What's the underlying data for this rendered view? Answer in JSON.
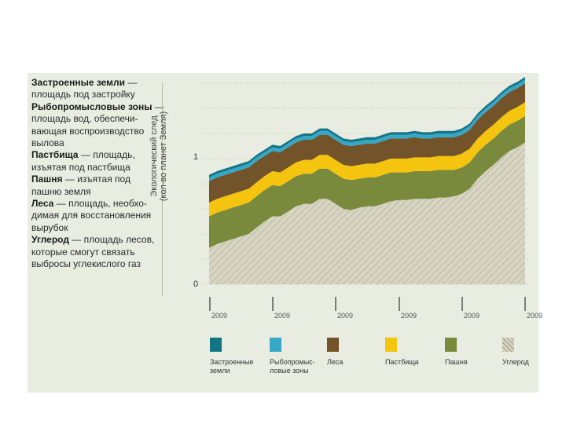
{
  "legend_text": [
    {
      "bold": "Застроенные земли",
      "rest": " —"
    },
    {
      "bold": "",
      "rest": "площадь под застройку"
    },
    {
      "bold": "Рыбопромысловые зоны",
      "rest": " —"
    },
    {
      "bold": "",
      "rest": "площадь вод, обеспечи-"
    },
    {
      "bold": "",
      "rest": "вающая воспроизводство"
    },
    {
      "bold": "",
      "rest": "вылова"
    },
    {
      "bold": "Пастбища",
      "rest": " — площадь,"
    },
    {
      "bold": "",
      "rest": "изъятая под пастбища"
    },
    {
      "bold": "Пашня",
      "rest": " — изъятая под"
    },
    {
      "bold": "",
      "rest": "пашню земля"
    },
    {
      "bold": "Леса",
      "rest": " — площадь, необхо-"
    },
    {
      "bold": "",
      "rest": "димая для восстановления"
    },
    {
      "bold": "",
      "rest": "вырубок"
    },
    {
      "bold": "Углерод",
      "rest": " — площадь лесов,"
    },
    {
      "bold": "",
      "rest": "которые смогут связать"
    },
    {
      "bold": "",
      "rest": "выбросы углекислого газ"
    }
  ],
  "chart_data": {
    "type": "area",
    "stacked": true,
    "title": "",
    "ylabel": "Экологический след (кол-во планет Земля)",
    "ylabel_line1": "Экологический след",
    "ylabel_line2": "(кол-во планет Земля)",
    "ylim": [
      0,
      1.6
    ],
    "yticks": [
      "0",
      "1"
    ],
    "grid": true,
    "x_tick_labels": [
      "2009",
      "2009",
      "2009",
      "2009",
      "2009",
      "2009"
    ],
    "x": [
      0,
      3,
      6,
      9,
      12,
      15,
      18,
      21,
      24,
      27,
      30,
      33,
      36,
      39,
      42,
      45,
      48,
      51,
      54,
      57,
      60,
      63,
      66,
      69,
      72,
      75,
      78,
      81,
      84,
      87,
      90,
      93,
      96,
      99,
      102,
      105,
      108,
      111,
      114,
      117,
      120
    ],
    "series": [
      {
        "name": "Углерод",
        "key": "carbon",
        "color": "#c9c6b2",
        "values": [
          0.29,
          0.32,
          0.34,
          0.36,
          0.38,
          0.4,
          0.45,
          0.5,
          0.54,
          0.54,
          0.58,
          0.62,
          0.64,
          0.64,
          0.68,
          0.68,
          0.64,
          0.6,
          0.59,
          0.61,
          0.62,
          0.62,
          0.64,
          0.66,
          0.67,
          0.67,
          0.68,
          0.68,
          0.68,
          0.69,
          0.69,
          0.7,
          0.72,
          0.76,
          0.84,
          0.9,
          0.95,
          1.01,
          1.06,
          1.09,
          1.13
        ]
      },
      {
        "name": "Пашня",
        "key": "cropland",
        "color": "#7a8a3c",
        "values": [
          0.25,
          0.25,
          0.25,
          0.25,
          0.25,
          0.25,
          0.25,
          0.25,
          0.25,
          0.24,
          0.24,
          0.24,
          0.24,
          0.24,
          0.24,
          0.24,
          0.24,
          0.24,
          0.24,
          0.23,
          0.23,
          0.23,
          0.23,
          0.23,
          0.22,
          0.22,
          0.22,
          0.22,
          0.22,
          0.22,
          0.22,
          0.21,
          0.21,
          0.21,
          0.21,
          0.21,
          0.21,
          0.21,
          0.21,
          0.21,
          0.21
        ]
      },
      {
        "name": "Пастбища",
        "key": "grazing",
        "color": "#f4c40f",
        "values": [
          0.11,
          0.11,
          0.11,
          0.11,
          0.11,
          0.11,
          0.11,
          0.11,
          0.11,
          0.11,
          0.11,
          0.11,
          0.11,
          0.11,
          0.11,
          0.11,
          0.11,
          0.11,
          0.11,
          0.11,
          0.11,
          0.11,
          0.11,
          0.11,
          0.11,
          0.11,
          0.11,
          0.11,
          0.11,
          0.11,
          0.11,
          0.11,
          0.11,
          0.11,
          0.11,
          0.11,
          0.11,
          0.11,
          0.11,
          0.11,
          0.11
        ]
      },
      {
        "name": "Леса",
        "key": "forest",
        "color": "#73532a",
        "values": [
          0.17,
          0.17,
          0.17,
          0.17,
          0.17,
          0.17,
          0.17,
          0.16,
          0.16,
          0.16,
          0.16,
          0.16,
          0.16,
          0.16,
          0.16,
          0.16,
          0.16,
          0.16,
          0.16,
          0.16,
          0.16,
          0.16,
          0.16,
          0.16,
          0.16,
          0.16,
          0.16,
          0.15,
          0.15,
          0.15,
          0.15,
          0.15,
          0.15,
          0.15,
          0.15,
          0.15,
          0.15,
          0.15,
          0.15,
          0.15,
          0.15
        ]
      },
      {
        "name": "Рыбопромысловые зоны",
        "key": "fishing",
        "color": "#35a8c8",
        "values": [
          0.03,
          0.03,
          0.03,
          0.03,
          0.03,
          0.03,
          0.03,
          0.03,
          0.03,
          0.03,
          0.03,
          0.03,
          0.03,
          0.03,
          0.03,
          0.03,
          0.03,
          0.03,
          0.03,
          0.03,
          0.03,
          0.03,
          0.03,
          0.03,
          0.03,
          0.03,
          0.03,
          0.03,
          0.03,
          0.03,
          0.03,
          0.03,
          0.03,
          0.03,
          0.03,
          0.03,
          0.03,
          0.03,
          0.03,
          0.03,
          0.03
        ]
      },
      {
        "name": "Застроенные земли",
        "key": "builtup",
        "color": "#137486",
        "values": [
          0.02,
          0.02,
          0.02,
          0.02,
          0.02,
          0.02,
          0.02,
          0.02,
          0.02,
          0.02,
          0.02,
          0.02,
          0.02,
          0.02,
          0.02,
          0.02,
          0.02,
          0.02,
          0.02,
          0.02,
          0.02,
          0.02,
          0.02,
          0.02,
          0.02,
          0.02,
          0.02,
          0.02,
          0.02,
          0.02,
          0.02,
          0.02,
          0.02,
          0.02,
          0.02,
          0.02,
          0.02,
          0.02,
          0.02,
          0.02,
          0.02
        ]
      }
    ],
    "legend": [
      {
        "key": "builtup",
        "label_lines": [
          "Застроенные",
          "земли"
        ]
      },
      {
        "key": "fishing",
        "label_lines": [
          "Рыбопромыс-",
          "ловые зоны"
        ]
      },
      {
        "key": "forest",
        "label_lines": [
          "Леса"
        ]
      },
      {
        "key": "grazing",
        "label_lines": [
          "Пастбища"
        ]
      },
      {
        "key": "cropland",
        "label_lines": [
          "Пашня"
        ]
      },
      {
        "key": "carbon",
        "label_lines": [
          "Углерод"
        ]
      }
    ],
    "legend_placement": "bottom"
  }
}
